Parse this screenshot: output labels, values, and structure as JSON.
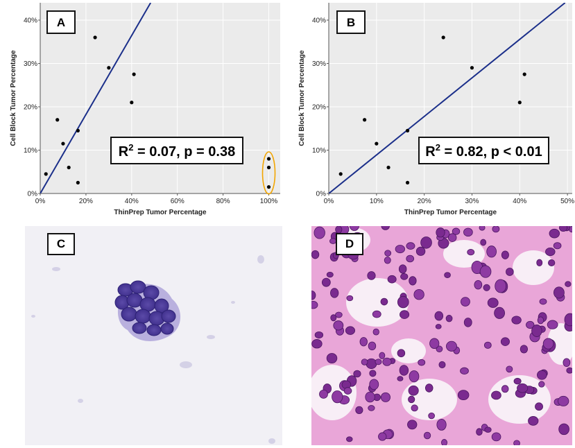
{
  "figure": {
    "panels": [
      "A",
      "B",
      "C",
      "D"
    ]
  },
  "chart_data": [
    {
      "type": "scatter",
      "panel": "A",
      "xlabel": "ThinPrep Tumor Percentage",
      "ylabel": "Cell Block Tumor Percentage",
      "xlim": [
        0,
        105
      ],
      "ylim": [
        0,
        44
      ],
      "xticks": [
        0,
        20,
        40,
        60,
        80,
        100
      ],
      "xtick_labels": [
        "0%",
        "20%",
        "40%",
        "60%",
        "80%",
        "100%"
      ],
      "yticks": [
        0,
        10,
        20,
        30,
        40
      ],
      "ytick_labels": [
        "0%",
        "10%",
        "20%",
        "30%",
        "40%"
      ],
      "points": [
        {
          "x": 2.5,
          "y": 4.5
        },
        {
          "x": 7.5,
          "y": 17
        },
        {
          "x": 10,
          "y": 11.5
        },
        {
          "x": 12.5,
          "y": 6
        },
        {
          "x": 16.5,
          "y": 2.5
        },
        {
          "x": 16.5,
          "y": 14.5
        },
        {
          "x": 24,
          "y": 36
        },
        {
          "x": 30,
          "y": 29
        },
        {
          "x": 40,
          "y": 21
        },
        {
          "x": 41,
          "y": 27.5
        },
        {
          "x": 100,
          "y": 8
        },
        {
          "x": 100,
          "y": 6
        },
        {
          "x": 100,
          "y": 1.5
        }
      ],
      "fit_line": {
        "x1": 0,
        "y1": 0,
        "x2": 48.3,
        "y2": 44
      },
      "highlight_outliers": {
        "x": 100,
        "y_range": [
          1.5,
          8
        ],
        "color": "#f2a500"
      },
      "stat_label": {
        "r2_prefix": "R",
        "superscript": "2",
        "rest": " = 0.07, p = 0.38"
      },
      "grid": true,
      "line_color": "#1b2f8a"
    },
    {
      "type": "scatter",
      "panel": "B",
      "xlabel": "ThinPrep Tumor Percentage",
      "ylabel": "Cell Block Tumor Percentage",
      "xlim": [
        0,
        51
      ],
      "ylim": [
        0,
        44
      ],
      "xticks": [
        0,
        10,
        20,
        30,
        40,
        50
      ],
      "xtick_labels": [
        "0%",
        "10%",
        "20%",
        "30%",
        "40%",
        "50%"
      ],
      "yticks": [
        0,
        10,
        20,
        30,
        40
      ],
      "ytick_labels": [
        "0%",
        "10%",
        "20%",
        "30%",
        "40%"
      ],
      "points": [
        {
          "x": 2.5,
          "y": 4.5
        },
        {
          "x": 7.5,
          "y": 17
        },
        {
          "x": 10,
          "y": 11.5
        },
        {
          "x": 12.5,
          "y": 6
        },
        {
          "x": 16.5,
          "y": 2.5
        },
        {
          "x": 16.5,
          "y": 14.5
        },
        {
          "x": 24,
          "y": 36
        },
        {
          "x": 30,
          "y": 29
        },
        {
          "x": 40,
          "y": 21
        },
        {
          "x": 41,
          "y": 27.5
        }
      ],
      "fit_line": {
        "x1": 0,
        "y1": 0,
        "x2": 49.5,
        "y2": 44
      },
      "stat_label": {
        "r2_prefix": "R",
        "superscript": "2",
        "rest": " = 0.82, p < 0.01"
      },
      "grid": true,
      "line_color": "#1b2f8a"
    }
  ]
}
